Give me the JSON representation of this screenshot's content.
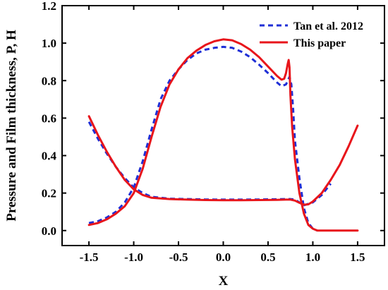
{
  "chart_data": {
    "type": "line",
    "title": "",
    "xlabel": "X",
    "ylabel": "Pressure and Film thickness, P, H",
    "xlim": [
      -1.8,
      1.8
    ],
    "ylim": [
      -0.08,
      1.2
    ],
    "xticks": [
      -1.5,
      -1.0,
      -0.5,
      0.0,
      0.5,
      1.0,
      1.5
    ],
    "xtick_labels": [
      "-1.5",
      "-1.0",
      "-0.5",
      "0.0",
      "0.5",
      "1.0",
      "1.5"
    ],
    "yticks": [
      0.0,
      0.2,
      0.4,
      0.6,
      0.8,
      1.0,
      1.2
    ],
    "ytick_labels": [
      "0.0",
      "0.2",
      "0.4",
      "0.6",
      "0.8",
      "1.0",
      "1.2"
    ],
    "grid": false,
    "legend_position": "top-right",
    "series": [
      {
        "name": "Tan et al. 2012",
        "quantity": "P",
        "color": "#1f2fd6",
        "style": "dashed",
        "x": [
          -1.5,
          -1.4,
          -1.3,
          -1.2,
          -1.1,
          -1.0,
          -0.9,
          -0.8,
          -0.7,
          -0.6,
          -0.5,
          -0.4,
          -0.3,
          -0.2,
          -0.1,
          0.0,
          0.1,
          0.2,
          0.3,
          0.4,
          0.5,
          0.6,
          0.65,
          0.7,
          0.72,
          0.74,
          0.76,
          0.78,
          0.8,
          0.85,
          0.9,
          0.95,
          1.0,
          1.05
        ],
        "y": [
          0.04,
          0.05,
          0.07,
          0.1,
          0.15,
          0.23,
          0.37,
          0.54,
          0.7,
          0.8,
          0.86,
          0.91,
          0.945,
          0.965,
          0.975,
          0.98,
          0.975,
          0.955,
          0.925,
          0.885,
          0.84,
          0.79,
          0.77,
          0.78,
          0.8,
          0.82,
          0.78,
          0.65,
          0.48,
          0.28,
          0.12,
          0.04,
          0.01,
          0.0
        ]
      },
      {
        "name": "Tan et al. 2012",
        "quantity": "H",
        "color": "#1f2fd6",
        "style": "dashed",
        "x": [
          -1.5,
          -1.4,
          -1.3,
          -1.2,
          -1.1,
          -1.0,
          -0.9,
          -0.8,
          -0.6,
          -0.4,
          -0.2,
          0.0,
          0.2,
          0.4,
          0.6,
          0.7,
          0.75,
          0.8,
          0.85,
          0.9,
          1.0,
          1.1,
          1.2
        ],
        "y": [
          0.58,
          0.49,
          0.41,
          0.34,
          0.28,
          0.23,
          0.2,
          0.18,
          0.17,
          0.168,
          0.166,
          0.165,
          0.165,
          0.166,
          0.167,
          0.168,
          0.168,
          0.165,
          0.15,
          0.135,
          0.15,
          0.19,
          0.25
        ]
      },
      {
        "name": "This paper",
        "quantity": "P",
        "color": "#e8151b",
        "style": "solid",
        "x": [
          -1.5,
          -1.4,
          -1.3,
          -1.2,
          -1.1,
          -1.0,
          -0.9,
          -0.8,
          -0.7,
          -0.6,
          -0.5,
          -0.4,
          -0.3,
          -0.2,
          -0.1,
          0.0,
          0.1,
          0.2,
          0.3,
          0.4,
          0.5,
          0.6,
          0.65,
          0.68,
          0.7,
          0.72,
          0.73,
          0.74,
          0.75,
          0.77,
          0.8,
          0.85,
          0.9,
          0.95,
          1.0,
          1.05,
          1.1,
          1.2,
          1.3,
          1.4,
          1.5
        ],
        "y": [
          0.03,
          0.04,
          0.06,
          0.09,
          0.13,
          0.2,
          0.33,
          0.5,
          0.66,
          0.78,
          0.86,
          0.92,
          0.96,
          0.99,
          1.01,
          1.02,
          1.015,
          0.995,
          0.965,
          0.925,
          0.875,
          0.825,
          0.805,
          0.81,
          0.84,
          0.89,
          0.91,
          0.87,
          0.72,
          0.55,
          0.38,
          0.2,
          0.09,
          0.03,
          0.01,
          0.0,
          0.0,
          0.0,
          0.0,
          0.0,
          0.0
        ]
      },
      {
        "name": "This paper",
        "quantity": "H",
        "color": "#e8151b",
        "style": "solid",
        "x": [
          -1.5,
          -1.4,
          -1.3,
          -1.2,
          -1.1,
          -1.0,
          -0.9,
          -0.8,
          -0.6,
          -0.4,
          -0.2,
          0.0,
          0.2,
          0.4,
          0.6,
          0.7,
          0.75,
          0.8,
          0.85,
          0.9,
          0.95,
          1.0,
          1.1,
          1.2,
          1.3,
          1.4,
          1.5
        ],
        "y": [
          0.61,
          0.51,
          0.42,
          0.34,
          0.27,
          0.22,
          0.19,
          0.175,
          0.168,
          0.165,
          0.163,
          0.162,
          0.162,
          0.163,
          0.164,
          0.165,
          0.165,
          0.16,
          0.148,
          0.138,
          0.14,
          0.155,
          0.2,
          0.27,
          0.35,
          0.45,
          0.56
        ]
      }
    ]
  }
}
